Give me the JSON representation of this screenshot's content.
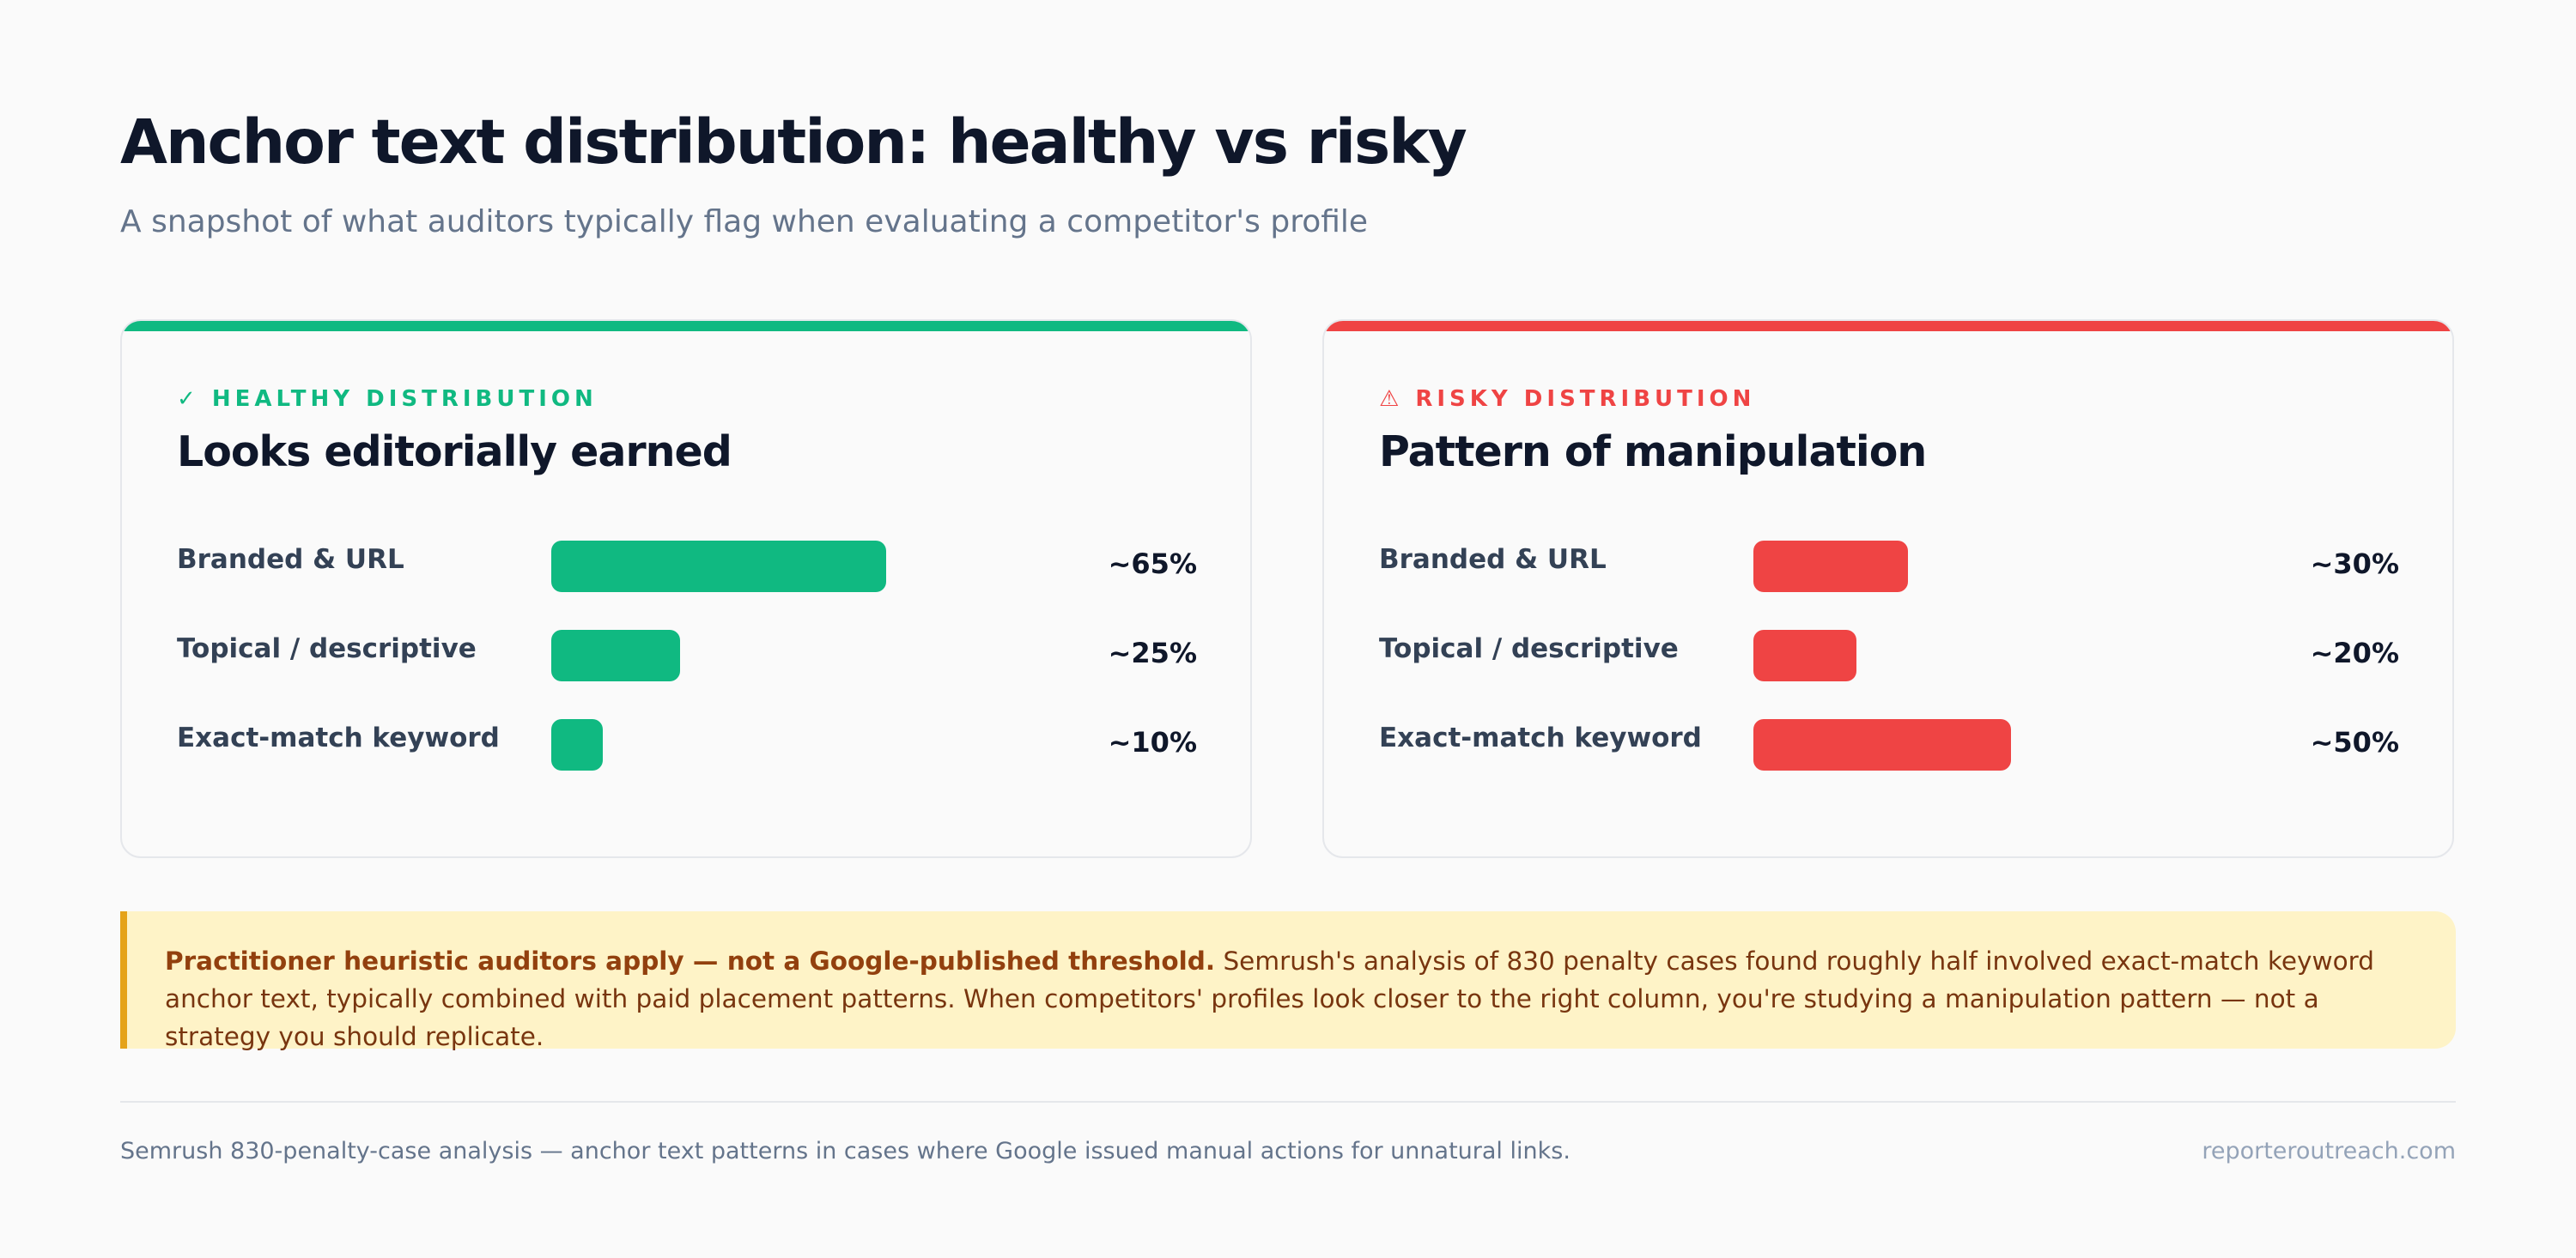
{
  "header": {
    "title": "Anchor text distribution: healthy vs risky",
    "subtitle": "A snapshot of what auditors typically flag when evaluating a competitor's profile"
  },
  "colors": {
    "healthy": "#10b981",
    "risky": "#ef4444",
    "callout_bg": "#fef3c7",
    "callout_border": "#e5a319"
  },
  "chart_data": [
    {
      "type": "bar",
      "eyebrow": "✓ HEALTHY DISTRIBUTION",
      "title": "Looks editorially earned",
      "categories": [
        "Branded & URL",
        "Topical / descriptive",
        "Exact-match keyword"
      ],
      "values": [
        65,
        25,
        10
      ],
      "value_labels": [
        "~65%",
        "~25%",
        "~10%"
      ],
      "color": "#10b981",
      "xlim": [
        0,
        100
      ]
    },
    {
      "type": "bar",
      "eyebrow": "⚠ RISKY DISTRIBUTION",
      "title": "Pattern of manipulation",
      "categories": [
        "Branded & URL",
        "Topical / descriptive",
        "Exact-match keyword"
      ],
      "values": [
        30,
        20,
        50
      ],
      "value_labels": [
        "~30%",
        "~20%",
        "~50%"
      ],
      "color": "#ef4444",
      "xlim": [
        0,
        100
      ]
    }
  ],
  "callout": {
    "bold": "Practitioner heuristic auditors apply — not a Google-published threshold.",
    "text": " Semrush's analysis of 830 penalty cases found roughly half involved exact-match keyword anchor text, typically combined with paid placement patterns. When competitors' profiles look closer to the right column, you're studying a manipulation pattern — not a strategy you should replicate."
  },
  "footer": {
    "note": "Semrush 830-penalty-case analysis — anchor text patterns in cases where Google issued manual actions for unnatural links.",
    "site": "reporteroutreach.com"
  }
}
